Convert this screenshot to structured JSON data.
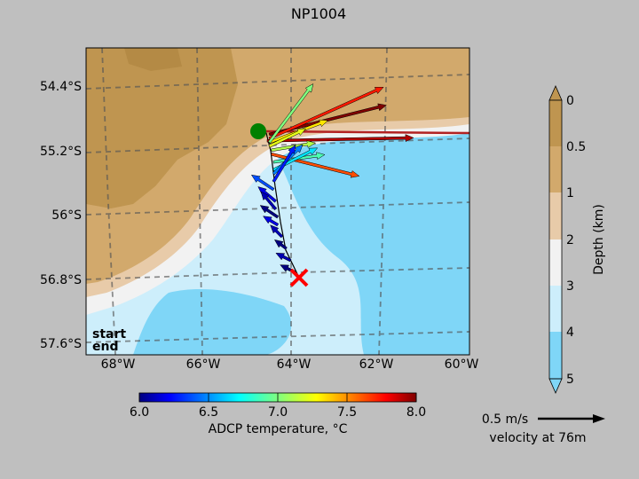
{
  "chart_data": {
    "type": "map",
    "title": "NP1004",
    "x_ticks": [
      "68°W",
      "66°W",
      "64°W",
      "62°W",
      "60°W"
    ],
    "y_ticks": [
      "54.4°S",
      "55.2°S",
      "56°S",
      "56.8°S",
      "57.6°S"
    ],
    "xlim": [
      -68.8,
      -59.8
    ],
    "ylim": [
      -57.7,
      -53.8
    ],
    "depth_colorbar": {
      "label": "Depth (km)",
      "ticks": [
        "0",
        "0.5",
        "1",
        "2",
        "3",
        "4",
        "5"
      ],
      "colors": [
        "#bf9550",
        "#d2a96c",
        "#e8cba9",
        "#f2f2f2",
        "#cdeefb",
        "#7fd6f7"
      ]
    },
    "temp_colorbar": {
      "label": "ADCP temperature, °C",
      "ticks": [
        "6.0",
        "6.5",
        "7.0",
        "7.5",
        "8.0"
      ],
      "range": [
        6.0,
        8.0
      ]
    },
    "legend": {
      "start": "start",
      "end": "end",
      "start_color": "#008000",
      "end_color": "#e60000"
    },
    "start_point": {
      "lon": -64.7,
      "lat": -54.95
    },
    "end_point": {
      "lon": -63.8,
      "lat": -56.78
    },
    "scale_arrow": {
      "label": "0.5 m/s",
      "sublabel": "velocity at 76m",
      "speed": 0.5
    },
    "vectors": [
      {
        "lon": -64.55,
        "lat": -54.98,
        "u": 1.0,
        "v": 0.02,
        "t": 7.9
      },
      {
        "lon": -64.5,
        "lat": -54.9,
        "u": 0.8,
        "v": 0.2,
        "t": 8.0
      },
      {
        "lon": -64.5,
        "lat": -54.95,
        "u": 0.78,
        "v": 0.35,
        "t": 7.7
      },
      {
        "lon": -64.5,
        "lat": -55.0,
        "u": 0.4,
        "v": 0.15,
        "t": 7.3
      },
      {
        "lon": -64.5,
        "lat": -55.0,
        "u": 0.3,
        "v": 0.4,
        "t": 7.0
      },
      {
        "lon": -64.5,
        "lat": -55.05,
        "u": 0.25,
        "v": 0.12,
        "t": 7.2
      },
      {
        "lon": -64.45,
        "lat": -55.1,
        "u": 0.3,
        "v": 0.05,
        "t": 7.1
      },
      {
        "lon": -64.45,
        "lat": -55.15,
        "u": 0.6,
        "v": -0.15,
        "t": 7.6
      },
      {
        "lon": -64.4,
        "lat": -55.25,
        "u": 0.35,
        "v": 0.05,
        "t": 6.9
      },
      {
        "lon": -64.4,
        "lat": -55.35,
        "u": 0.3,
        "v": 0.15,
        "t": 6.7
      },
      {
        "lon": -64.4,
        "lat": -55.4,
        "u": 0.2,
        "v": 0.2,
        "t": 6.5
      },
      {
        "lon": -64.4,
        "lat": -55.5,
        "u": 0.15,
        "v": 0.25,
        "t": 6.3
      },
      {
        "lon": -64.4,
        "lat": -55.6,
        "u": -0.15,
        "v": 0.1,
        "t": 6.4
      },
      {
        "lon": -64.35,
        "lat": -55.75,
        "u": -0.12,
        "v": 0.1,
        "t": 6.2
      },
      {
        "lon": -64.35,
        "lat": -55.85,
        "u": -0.1,
        "v": 0.12,
        "t": 6.1
      },
      {
        "lon": -64.3,
        "lat": -55.95,
        "u": -0.12,
        "v": 0.08,
        "t": 6.0
      },
      {
        "lon": -64.3,
        "lat": -56.05,
        "u": -0.1,
        "v": 0.06,
        "t": 6.2
      },
      {
        "lon": -64.2,
        "lat": -56.2,
        "u": -0.08,
        "v": 0.08,
        "t": 6.1
      },
      {
        "lon": -64.1,
        "lat": -56.35,
        "u": -0.08,
        "v": 0.06,
        "t": 6.0
      },
      {
        "lon": -64.0,
        "lat": -56.5,
        "u": -0.1,
        "v": 0.05,
        "t": 6.1
      },
      {
        "lon": -63.9,
        "lat": -56.65,
        "u": -0.1,
        "v": 0.05,
        "t": 6.0
      }
    ]
  }
}
